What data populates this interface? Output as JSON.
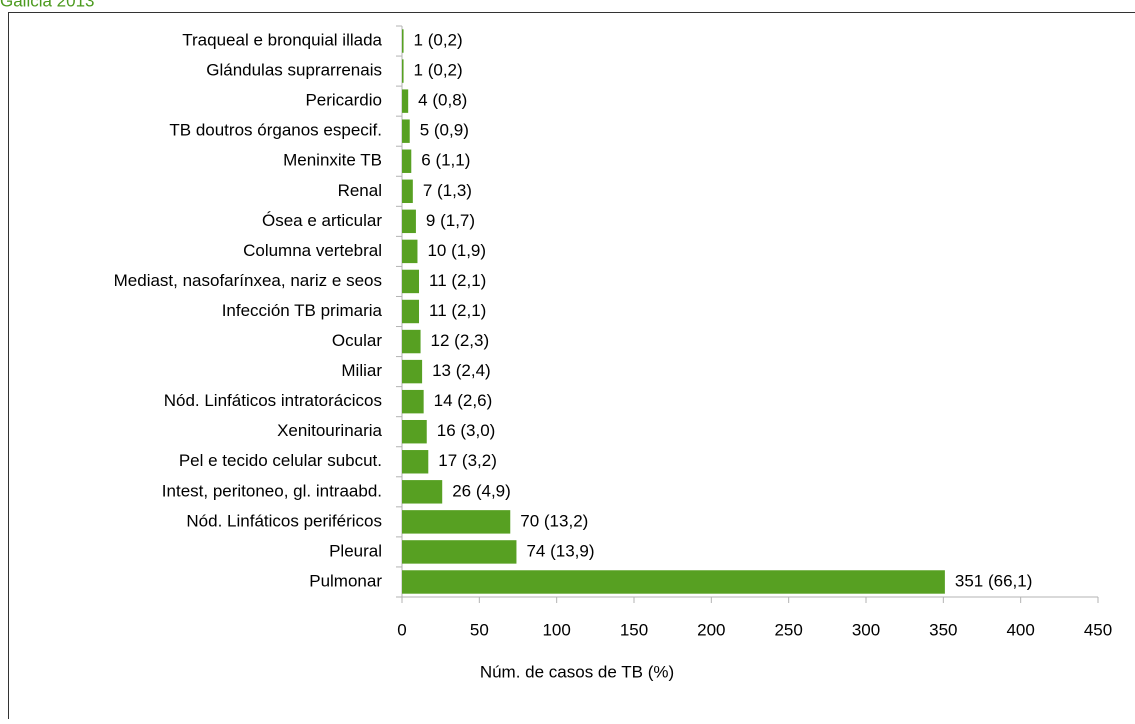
{
  "chart_data": {
    "type": "barh",
    "title": "Galicia 2013",
    "x_label": "Núm. de casos de TB (%)",
    "categories": [
      "Traqueal e bronquial illada",
      "Glándulas suprarrenais",
      "Pericardio",
      "TB  doutros órganos especif.",
      "Meninxite TB",
      "Renal",
      "Ósea e articular",
      "Columna vertebral",
      "Mediast, nasofarínxea, nariz e seos",
      "Infección TB primaria",
      "Ocular",
      "Miliar",
      "Nód. Linfáticos intratorácicos",
      "Xenitourinaria",
      "Pel e tecido celular subcut.",
      "Intest, peritoneo, gl. intraabd.",
      "Nód. Linfáticos periféricos",
      "Pleural",
      "Pulmonar"
    ],
    "values": [
      1,
      1,
      4,
      5,
      6,
      7,
      9,
      10,
      11,
      11,
      12,
      13,
      14,
      16,
      17,
      26,
      70,
      74,
      351
    ],
    "value_labels": [
      "1 (0,2)",
      "1 (0,2)",
      "4 (0,8)",
      "5 (0,9)",
      "6  (1,1)",
      "7  (1,3)",
      "9  (1,7)",
      "10  (1,9)",
      "11  (2,1)",
      "11  (2,1)",
      "12  (2,3)",
      "13  (2,4)",
      "14  (2,6)",
      "16  (3,0)",
      "17  (3,2)",
      "26  (4,9)",
      "70  (13,2)",
      "74  (13,9)",
      "351  (66,1)"
    ],
    "color": "#57a022",
    "xlim": [
      0,
      450
    ],
    "xticks": [
      0,
      50,
      100,
      150,
      200,
      250,
      300,
      350,
      400,
      450
    ]
  }
}
